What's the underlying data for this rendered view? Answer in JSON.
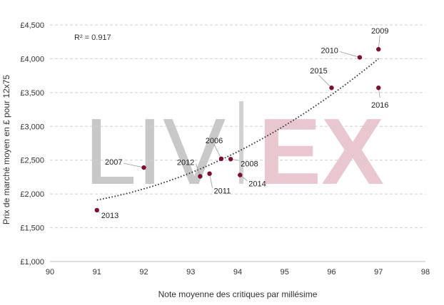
{
  "chart_data": {
    "type": "scatter",
    "xlabel": "Note moyenne des critiques par millésime",
    "ylabel": "Prix de marché moyen en £ pour 12x75",
    "xlim": [
      90,
      98
    ],
    "ylim": [
      1000,
      4500
    ],
    "x_ticks": [
      "90",
      "91",
      "92",
      "93",
      "94",
      "95",
      "96",
      "97",
      "98"
    ],
    "y_ticks": [
      "£1,000",
      "£1,500",
      "£2,000",
      "£2,500",
      "£3,000",
      "£3,500",
      "£4,000",
      "£4,500"
    ],
    "grid": "horizontal dashed",
    "annotation": "R² = 0.917",
    "watermark": {
      "left": "LIV",
      "right": "EX"
    },
    "trendline": {
      "style": "dotted",
      "x_range": [
        91,
        97
      ],
      "y_start": 1910,
      "y_end": 4000
    },
    "colors": {
      "point": "#7a0f2e",
      "trendline": "#333333",
      "grid": "#cfcfcf",
      "watermark_grey": "#c8c8c8",
      "watermark_pink": "#e8c7d0"
    },
    "points": [
      {
        "label": "2013",
        "x": 91.0,
        "y": 1760
      },
      {
        "label": "2007",
        "x": 92.0,
        "y": 2390
      },
      {
        "label": "2012",
        "x": 93.2,
        "y": 2260
      },
      {
        "label": "2011",
        "x": 93.4,
        "y": 2300
      },
      {
        "label": "2006",
        "x": 93.65,
        "y": 2520
      },
      {
        "label": "2008",
        "x": 93.85,
        "y": 2515
      },
      {
        "label": "2014",
        "x": 94.05,
        "y": 2280
      },
      {
        "label": "2015",
        "x": 96.0,
        "y": 3570
      },
      {
        "label": "2010",
        "x": 96.6,
        "y": 4020
      },
      {
        "label": "2009",
        "x": 97.0,
        "y": 4140
      },
      {
        "label": "2016",
        "x": 97.0,
        "y": 3570
      }
    ]
  }
}
